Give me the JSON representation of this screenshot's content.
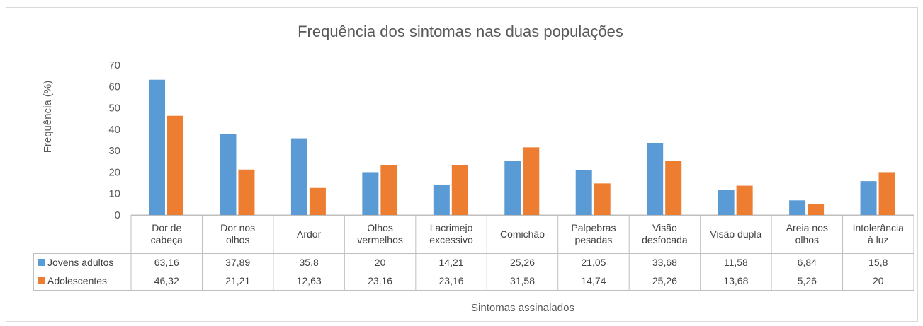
{
  "chart_data": {
    "type": "bar",
    "title": "Frequência dos sintomas nas duas populações",
    "x_label": "Sintomas assinalados",
    "y_label": "Frequência (%)",
    "categories": [
      "Dor de cabeça",
      "Dor nos olhos",
      "Ardor",
      "Olhos vermelhos",
      "Lacrimejo excessivo",
      "Comichão",
      "Palpebras pesadas",
      "Visão desfocada",
      "Visão dupla",
      "Areia nos olhos",
      "Intolerância à luz"
    ],
    "series": [
      {
        "name": "Jovens adultos",
        "color": "#5b9bd5",
        "values": [
          63.16,
          37.89,
          35.8,
          20,
          14.21,
          25.26,
          21.05,
          33.68,
          11.58,
          6.84,
          15.8
        ],
        "value_labels": [
          "63,16",
          "37,89",
          "35,8",
          "20",
          "14,21",
          "25,26",
          "21,05",
          "33,68",
          "11,58",
          "6,84",
          "15,8"
        ]
      },
      {
        "name": "Adolescentes",
        "color": "#ed7d31",
        "values": [
          46.32,
          21.21,
          12.63,
          23.16,
          23.16,
          31.58,
          14.74,
          25.26,
          13.68,
          5.26,
          20
        ],
        "value_labels": [
          "46,32",
          "21,21",
          "12,63",
          "23,16",
          "23,16",
          "31,58",
          "14,74",
          "25,26",
          "13,68",
          "5,26",
          "20"
        ]
      }
    ],
    "ylim": [
      0,
      70
    ],
    "yticks": [
      0,
      10,
      20,
      30,
      40,
      50,
      60,
      70
    ]
  }
}
